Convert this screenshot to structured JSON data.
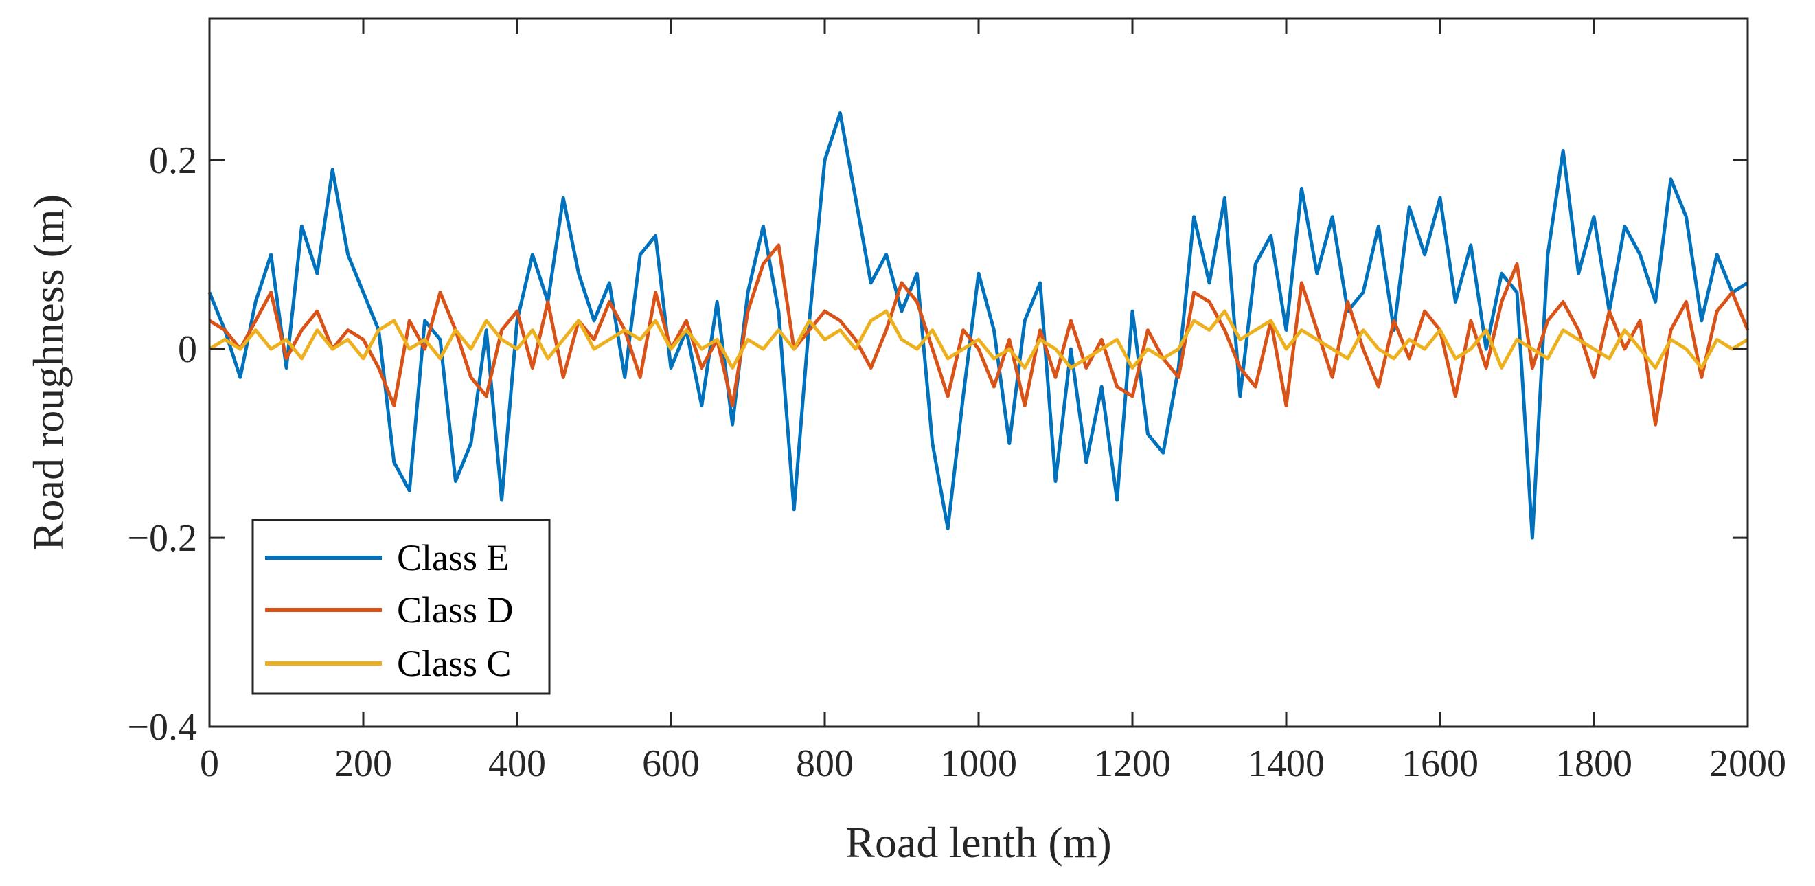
{
  "chart_data": {
    "type": "line",
    "title": "",
    "xlabel": "Road lenth (m)",
    "ylabel": "Road roughness (m)",
    "xlim": [
      0,
      2000
    ],
    "ylim": [
      -0.4,
      0.35
    ],
    "x_ticks": [
      0,
      200,
      400,
      600,
      800,
      1000,
      1200,
      1400,
      1600,
      1800,
      2000
    ],
    "x_tick_labels": [
      "0",
      "200",
      "400",
      "600",
      "800",
      "1000",
      "1200",
      "1400",
      "1600",
      "1800",
      "2000"
    ],
    "y_ticks": [
      -0.4,
      -0.2,
      0,
      0.2
    ],
    "y_tick_labels": [
      "−0.4",
      "−0.2",
      "0",
      "0.2"
    ],
    "grid": false,
    "legend_position": "bottom-left",
    "x": [
      0,
      20,
      40,
      60,
      80,
      100,
      120,
      140,
      160,
      180,
      200,
      220,
      240,
      260,
      280,
      300,
      320,
      340,
      360,
      380,
      400,
      420,
      440,
      460,
      480,
      500,
      520,
      540,
      560,
      580,
      600,
      620,
      640,
      660,
      680,
      700,
      720,
      740,
      760,
      780,
      800,
      820,
      840,
      860,
      880,
      900,
      920,
      940,
      960,
      980,
      1000,
      1020,
      1040,
      1060,
      1080,
      1100,
      1120,
      1140,
      1160,
      1180,
      1200,
      1220,
      1240,
      1260,
      1280,
      1300,
      1320,
      1340,
      1360,
      1380,
      1400,
      1420,
      1440,
      1460,
      1480,
      1500,
      1520,
      1540,
      1560,
      1580,
      1600,
      1620,
      1640,
      1660,
      1680,
      1700,
      1720,
      1740,
      1760,
      1780,
      1800,
      1820,
      1840,
      1860,
      1880,
      1900,
      1920,
      1940,
      1960,
      1980,
      2000
    ],
    "series": [
      {
        "name": "Class E",
        "color": "#0072BD",
        "values": [
          0.06,
          0.02,
          -0.03,
          0.05,
          0.1,
          -0.02,
          0.13,
          0.08,
          0.19,
          0.1,
          0.06,
          0.02,
          -0.12,
          -0.15,
          0.03,
          0.01,
          -0.14,
          -0.1,
          0.02,
          -0.16,
          0.03,
          0.1,
          0.05,
          0.16,
          0.08,
          0.03,
          0.07,
          -0.03,
          0.1,
          0.12,
          -0.02,
          0.02,
          -0.06,
          0.05,
          -0.08,
          0.06,
          0.13,
          0.04,
          -0.17,
          0.03,
          0.2,
          0.25,
          0.16,
          0.07,
          0.1,
          0.04,
          0.08,
          -0.1,
          -0.19,
          -0.05,
          0.08,
          0.02,
          -0.1,
          0.03,
          0.07,
          -0.14,
          0.0,
          -0.12,
          -0.04,
          -0.16,
          0.04,
          -0.09,
          -0.11,
          -0.02,
          0.14,
          0.07,
          0.16,
          -0.05,
          0.09,
          0.12,
          0.02,
          0.17,
          0.08,
          0.14,
          0.04,
          0.06,
          0.13,
          0.02,
          0.15,
          0.1,
          0.16,
          0.05,
          0.11,
          0.0,
          0.08,
          0.06,
          -0.2,
          0.1,
          0.21,
          0.08,
          0.14,
          0.04,
          0.13,
          0.1,
          0.05,
          0.18,
          0.14,
          0.03,
          0.1,
          0.06,
          0.07
        ]
      },
      {
        "name": "Class D",
        "color": "#D95319",
        "values": [
          0.03,
          0.02,
          0.0,
          0.03,
          0.06,
          -0.01,
          0.02,
          0.04,
          0.0,
          0.02,
          0.01,
          -0.02,
          -0.06,
          0.03,
          0.0,
          0.06,
          0.02,
          -0.03,
          -0.05,
          0.02,
          0.04,
          -0.02,
          0.05,
          -0.03,
          0.03,
          0.01,
          0.05,
          0.02,
          -0.03,
          0.06,
          0.0,
          0.03,
          -0.02,
          0.01,
          -0.06,
          0.04,
          0.09,
          0.11,
          0.0,
          0.02,
          0.04,
          0.03,
          0.01,
          -0.02,
          0.02,
          0.07,
          0.05,
          0.0,
          -0.05,
          0.02,
          0.0,
          -0.04,
          0.01,
          -0.06,
          0.02,
          -0.03,
          0.03,
          -0.02,
          0.01,
          -0.04,
          -0.05,
          0.02,
          -0.01,
          -0.03,
          0.06,
          0.05,
          0.02,
          -0.02,
          -0.04,
          0.03,
          -0.06,
          0.07,
          0.02,
          -0.03,
          0.05,
          0.0,
          -0.04,
          0.03,
          -0.01,
          0.04,
          0.02,
          -0.05,
          0.03,
          -0.02,
          0.05,
          0.09,
          -0.02,
          0.03,
          0.05,
          0.02,
          -0.03,
          0.04,
          0.0,
          0.03,
          -0.08,
          0.02,
          0.05,
          -0.03,
          0.04,
          0.06,
          0.02
        ]
      },
      {
        "name": "Class C",
        "color": "#EDB120",
        "values": [
          0.0,
          0.01,
          0.0,
          0.02,
          0.0,
          0.01,
          -0.01,
          0.02,
          0.0,
          0.01,
          -0.01,
          0.02,
          0.03,
          0.0,
          0.01,
          -0.01,
          0.02,
          0.0,
          0.03,
          0.01,
          0.0,
          0.02,
          -0.01,
          0.01,
          0.03,
          0.0,
          0.01,
          0.02,
          0.01,
          0.03,
          0.0,
          0.02,
          0.0,
          0.01,
          -0.02,
          0.01,
          0.0,
          0.02,
          0.0,
          0.03,
          0.01,
          0.02,
          0.0,
          0.03,
          0.04,
          0.01,
          0.0,
          0.02,
          -0.01,
          0.0,
          0.01,
          -0.01,
          0.0,
          -0.02,
          0.01,
          0.0,
          -0.02,
          -0.01,
          0.0,
          0.01,
          -0.02,
          0.0,
          -0.01,
          0.0,
          0.03,
          0.02,
          0.04,
          0.01,
          0.02,
          0.03,
          0.0,
          0.02,
          0.01,
          0.0,
          -0.01,
          0.02,
          0.0,
          -0.01,
          0.01,
          0.0,
          0.02,
          -0.01,
          0.0,
          0.02,
          -0.02,
          0.01,
          0.0,
          -0.01,
          0.02,
          0.01,
          0.0,
          -0.01,
          0.02,
          0.0,
          -0.02,
          0.01,
          0.0,
          -0.02,
          0.01,
          0.0,
          0.01
        ]
      }
    ]
  }
}
